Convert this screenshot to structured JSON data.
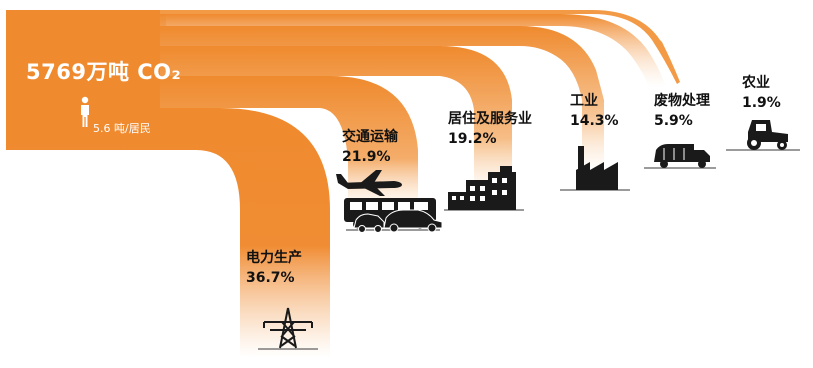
{
  "header": {
    "total": "5769万吨 CO₂",
    "per_capita": "5.6 吨/居民"
  },
  "sectors": [
    {
      "name": "电力生产",
      "percent": "36.7%"
    },
    {
      "name": "交通运输",
      "percent": "21.9%"
    },
    {
      "name": "居住及服务业",
      "percent": "19.2%"
    },
    {
      "name": "工业",
      "percent": "14.3%"
    },
    {
      "name": "废物处理",
      "percent": "5.9%"
    },
    {
      "name": "农业",
      "percent": "1.9%"
    }
  ],
  "colors": {
    "flow": "#ef8a2e",
    "flow_light": "#f6c48d",
    "icon": "#1a1a1a"
  },
  "icons": [
    "person-icon",
    "power-tower-icon",
    "airplane-icon",
    "bus-icon",
    "car-icon",
    "buildings-icon",
    "factory-icon",
    "garbage-truck-icon",
    "tractor-icon"
  ]
}
